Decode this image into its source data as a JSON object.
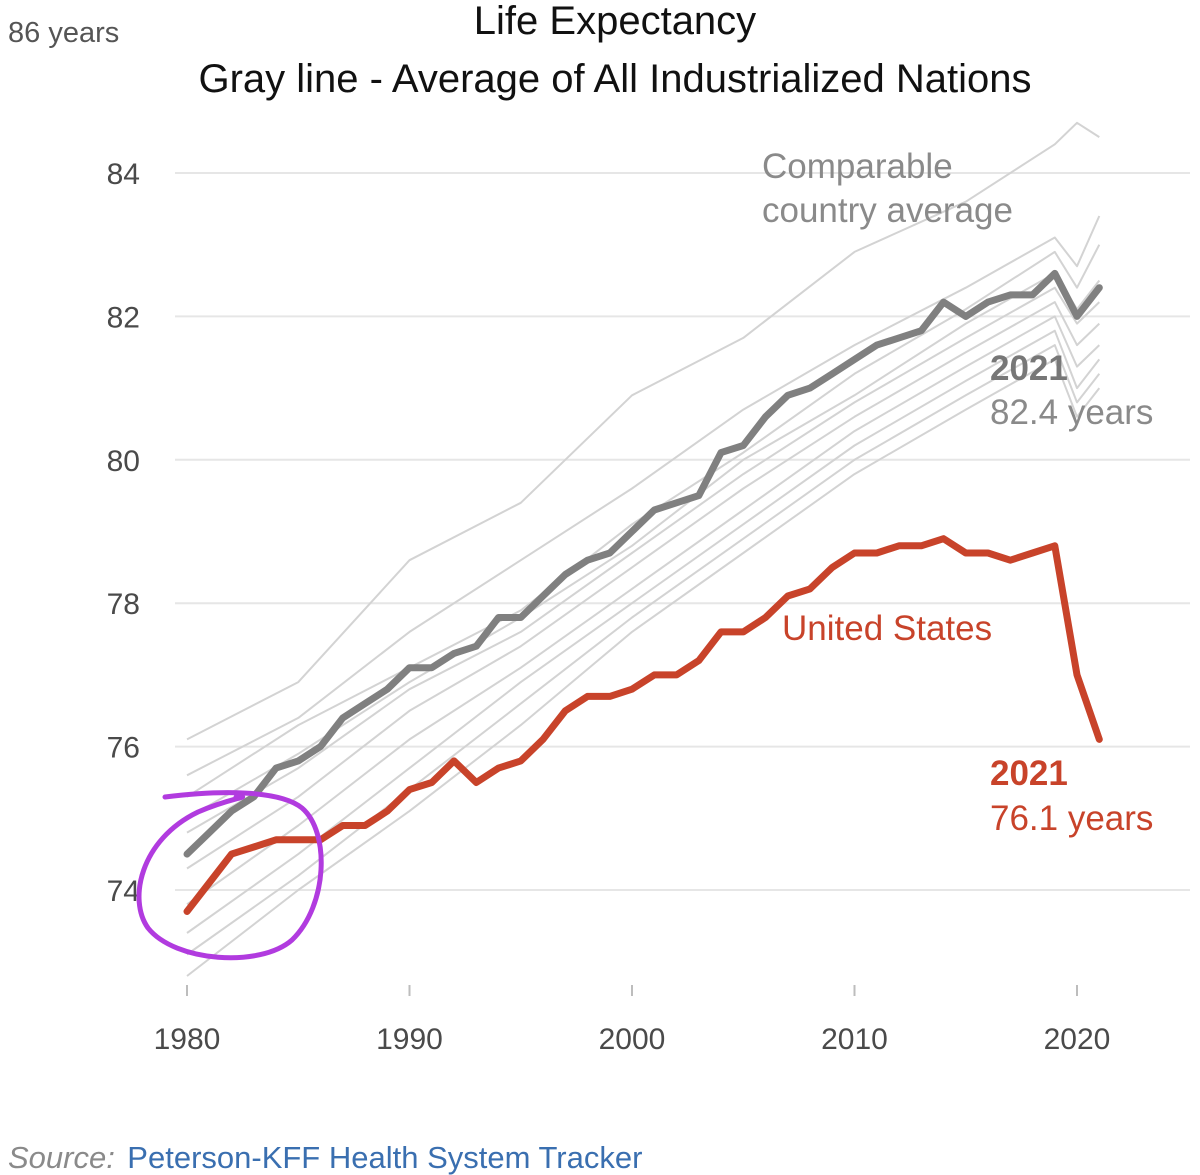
{
  "chart_data": {
    "type": "line",
    "title": "Life Expectancy",
    "subtitle": "Gray line - Average of All Industrialized Nations",
    "y_unit_label": "86 years",
    "xlabel": "",
    "ylabel": "",
    "xlim": [
      1980,
      2021
    ],
    "ylim": [
      73,
      86
    ],
    "x_ticks": [
      1980,
      1990,
      2000,
      2010,
      2020
    ],
    "y_ticks": [
      74,
      76,
      78,
      80,
      82,
      84
    ],
    "grid": "horizontal",
    "colors": {
      "average": "#808080",
      "us": "#c8432a",
      "countries": "#d3d3d3",
      "grid": "#e6e6e6",
      "annotation": "#b13bdf"
    },
    "series": [
      {
        "name": "Comparable country average",
        "x": [
          1980,
          1981,
          1982,
          1983,
          1984,
          1985,
          1986,
          1987,
          1988,
          1989,
          1990,
          1991,
          1992,
          1993,
          1994,
          1995,
          1996,
          1997,
          1998,
          1999,
          2000,
          2001,
          2002,
          2003,
          2004,
          2005,
          2006,
          2007,
          2008,
          2009,
          2010,
          2011,
          2012,
          2013,
          2014,
          2015,
          2016,
          2017,
          2018,
          2019,
          2020,
          2021
        ],
        "values": [
          74.5,
          74.8,
          75.1,
          75.3,
          75.7,
          75.8,
          76.0,
          76.4,
          76.6,
          76.8,
          77.1,
          77.1,
          77.3,
          77.4,
          77.8,
          77.8,
          78.1,
          78.4,
          78.6,
          78.7,
          79.0,
          79.3,
          79.4,
          79.5,
          80.1,
          80.2,
          80.6,
          80.9,
          81.0,
          81.2,
          81.4,
          81.6,
          81.7,
          81.8,
          82.2,
          82.0,
          82.2,
          82.3,
          82.3,
          82.6,
          82.0,
          82.4
        ]
      },
      {
        "name": "United States",
        "x": [
          1980,
          1981,
          1982,
          1983,
          1984,
          1985,
          1986,
          1987,
          1988,
          1989,
          1990,
          1991,
          1992,
          1993,
          1994,
          1995,
          1996,
          1997,
          1998,
          1999,
          2000,
          2001,
          2002,
          2003,
          2004,
          2005,
          2006,
          2007,
          2008,
          2009,
          2010,
          2011,
          2012,
          2013,
          2014,
          2015,
          2016,
          2017,
          2018,
          2019,
          2020,
          2021
        ],
        "values": [
          73.7,
          74.1,
          74.5,
          74.6,
          74.7,
          74.7,
          74.7,
          74.9,
          74.9,
          75.1,
          75.4,
          75.5,
          75.8,
          75.5,
          75.7,
          75.8,
          76.1,
          76.5,
          76.7,
          76.7,
          76.8,
          77.0,
          77.0,
          77.2,
          77.6,
          77.6,
          77.8,
          78.1,
          78.2,
          78.5,
          78.7,
          78.7,
          78.8,
          78.8,
          78.9,
          78.7,
          78.7,
          78.6,
          78.7,
          78.8,
          77.0,
          76.1
        ]
      }
    ],
    "background_series": [
      {
        "x": [
          1980,
          1985,
          1990,
          1995,
          2000,
          2005,
          2010,
          2015,
          2019,
          2020,
          2021
        ],
        "values": [
          76.1,
          76.9,
          78.6,
          79.4,
          80.9,
          81.7,
          82.9,
          83.6,
          84.4,
          84.7,
          84.5
        ]
      },
      {
        "x": [
          1980,
          1985,
          1990,
          1995,
          2000,
          2005,
          2010,
          2015,
          2019,
          2020,
          2021
        ],
        "values": [
          75.6,
          76.4,
          77.6,
          78.6,
          79.6,
          80.7,
          81.6,
          82.4,
          83.1,
          82.7,
          83.4
        ]
      },
      {
        "x": [
          1980,
          1985,
          1990,
          1995,
          2000,
          2005,
          2010,
          2015,
          2019,
          2020,
          2021
        ],
        "values": [
          75.3,
          76.3,
          77.1,
          77.9,
          79.1,
          80.1,
          81.2,
          82.1,
          82.9,
          82.4,
          83.0
        ]
      },
      {
        "x": [
          1980,
          1985,
          1990,
          1995,
          2000,
          2005,
          2010,
          2015,
          2019,
          2020,
          2021
        ],
        "values": [
          75.0,
          75.9,
          76.9,
          77.8,
          78.8,
          80.0,
          80.9,
          81.9,
          82.6,
          82.1,
          82.5
        ]
      },
      {
        "x": [
          1980,
          1985,
          1990,
          1995,
          2000,
          2005,
          2010,
          2015,
          2019,
          2020,
          2021
        ],
        "values": [
          74.8,
          75.7,
          76.8,
          77.6,
          78.7,
          79.8,
          80.8,
          81.7,
          82.4,
          81.9,
          82.2
        ]
      },
      {
        "x": [
          1980,
          1985,
          1990,
          1995,
          2000,
          2005,
          2010,
          2015,
          2019,
          2020,
          2021
        ],
        "values": [
          74.3,
          75.3,
          76.5,
          77.4,
          78.5,
          79.6,
          80.6,
          81.5,
          82.2,
          81.6,
          81.9
        ]
      },
      {
        "x": [
          1980,
          1985,
          1990,
          1995,
          2000,
          2005,
          2010,
          2015,
          2019,
          2020,
          2021
        ],
        "values": [
          73.8,
          74.9,
          76.1,
          77.1,
          78.2,
          79.3,
          80.4,
          81.3,
          82.0,
          81.3,
          81.6
        ]
      },
      {
        "x": [
          1980,
          1985,
          1990,
          1995,
          2000,
          2005,
          2010,
          2015,
          2019,
          2020,
          2021
        ],
        "values": [
          73.4,
          74.5,
          75.7,
          76.9,
          78.0,
          79.1,
          80.2,
          81.1,
          81.8,
          81.0,
          81.4
        ]
      },
      {
        "x": [
          1980,
          1985,
          1990,
          1995,
          2000,
          2005,
          2010,
          2015,
          2019,
          2020,
          2021
        ],
        "values": [
          73.1,
          74.2,
          75.4,
          76.6,
          77.8,
          78.9,
          80.0,
          80.9,
          81.6,
          80.8,
          81.2
        ]
      },
      {
        "x": [
          1980,
          1985,
          1990,
          1995,
          2000,
          2005,
          2010,
          2015,
          2019,
          2020,
          2021
        ],
        "values": [
          72.8,
          74.0,
          75.1,
          76.3,
          77.6,
          78.7,
          79.8,
          80.7,
          81.4,
          80.6,
          81.0
        ]
      }
    ],
    "annotations": {
      "average_label_line1": "Comparable",
      "average_label_line2": "country average",
      "average_end_year": "2021",
      "average_end_value": "82.4 years",
      "us_label": "United States",
      "us_end_year": "2021",
      "us_end_value": "76.1 years"
    },
    "source_prefix": "Source:",
    "source_name": "Peterson-KFF Health System Tracker"
  }
}
